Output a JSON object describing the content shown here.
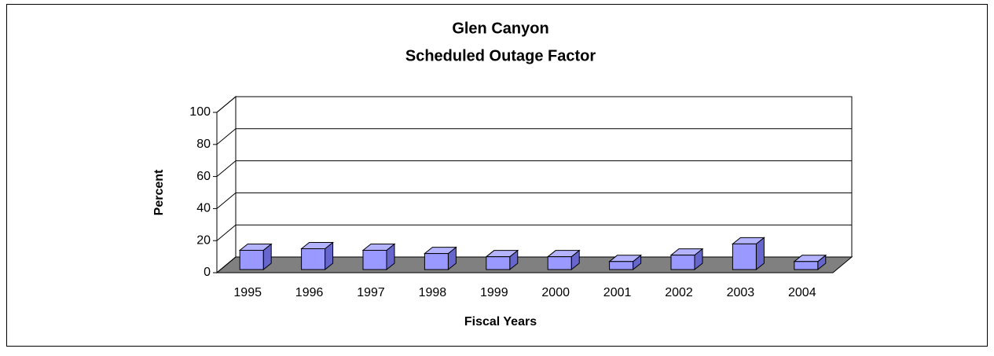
{
  "chart_data": {
    "type": "bar3d",
    "title": "Glen Canyon",
    "subtitle": "Scheduled Outage Factor",
    "ylabel": "Percent",
    "xlabel": "Fiscal Years",
    "categories": [
      "1995",
      "1996",
      "1997",
      "1998",
      "1999",
      "2000",
      "2001",
      "2002",
      "2003",
      "2004"
    ],
    "values": [
      12,
      13,
      12,
      10,
      8,
      8,
      5,
      9,
      16,
      5
    ],
    "color": "#9999ff",
    "ylim": [
      0,
      100
    ],
    "yticks": [
      0,
      20,
      40,
      60,
      80,
      100
    ],
    "grid": true
  }
}
